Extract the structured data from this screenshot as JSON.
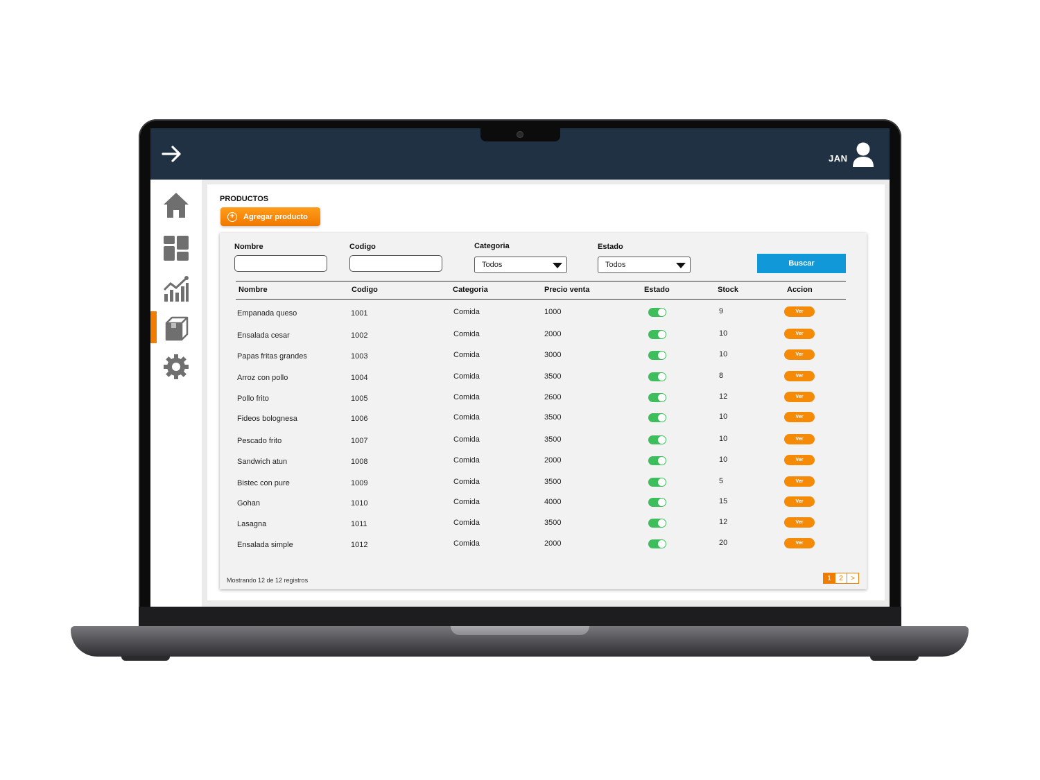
{
  "header": {
    "user_name": "JAN"
  },
  "sidebar": {
    "items": [
      {
        "icon": "home-icon"
      },
      {
        "icon": "dashboard-icon"
      },
      {
        "icon": "chart-icon"
      },
      {
        "icon": "box-icon",
        "active": true
      },
      {
        "icon": "gear-icon"
      }
    ]
  },
  "page": {
    "title": "PRODUCTOS",
    "add_button": "Agregar producto"
  },
  "filters": {
    "name_label": "Nombre",
    "code_label": "Codigo",
    "category_label": "Categoria",
    "category_value": "Todos",
    "status_label": "Estado",
    "status_value": "Todos",
    "search_button": "Buscar"
  },
  "table": {
    "columns": [
      "Nombre",
      "Codigo",
      "Categoria",
      "Precio venta",
      "Estado",
      "Stock",
      "Accion"
    ],
    "action_label": "Ver",
    "rows": [
      {
        "name": "Empanada queso",
        "code": "1001",
        "category": "Comida",
        "price": "1000",
        "active": true,
        "stock": "9"
      },
      {
        "name": "Ensalada cesar",
        "code": "1002",
        "category": "Comida",
        "price": "2000",
        "active": true,
        "stock": "10"
      },
      {
        "name": "Papas fritas grandes",
        "code": "1003",
        "category": "Comida",
        "price": "3000",
        "active": true,
        "stock": "10"
      },
      {
        "name": "Arroz con pollo",
        "code": "1004",
        "category": "Comida",
        "price": "3500",
        "active": true,
        "stock": "8"
      },
      {
        "name": "Pollo frito",
        "code": "1005",
        "category": "Comida",
        "price": "2600",
        "active": true,
        "stock": "12"
      },
      {
        "name": "Fideos bolognesa",
        "code": "1006",
        "category": "Comida",
        "price": "3500",
        "active": true,
        "stock": "10"
      },
      {
        "name": "Pescado frito",
        "code": "1007",
        "category": "Comida",
        "price": "3500",
        "active": true,
        "stock": "10"
      },
      {
        "name": "Sandwich atun",
        "code": "1008",
        "category": "Comida",
        "price": "2000",
        "active": true,
        "stock": "10"
      },
      {
        "name": "Bistec con pure",
        "code": "1009",
        "category": "Comida",
        "price": "3500",
        "active": true,
        "stock": "5"
      },
      {
        "name": "Gohan",
        "code": "1010",
        "category": "Comida",
        "price": "4000",
        "active": true,
        "stock": "15"
      },
      {
        "name": "Lasagna",
        "code": "1011",
        "category": "Comida",
        "price": "3500",
        "active": true,
        "stock": "12"
      },
      {
        "name": "Ensalada simple",
        "code": "1012",
        "category": "Comida",
        "price": "2000",
        "active": true,
        "stock": "20"
      }
    ]
  },
  "footer": {
    "records_text": "Mostrando 12 de 12 registros",
    "pages": [
      "1",
      "2"
    ],
    "current_page": "1",
    "next_label": ">"
  }
}
